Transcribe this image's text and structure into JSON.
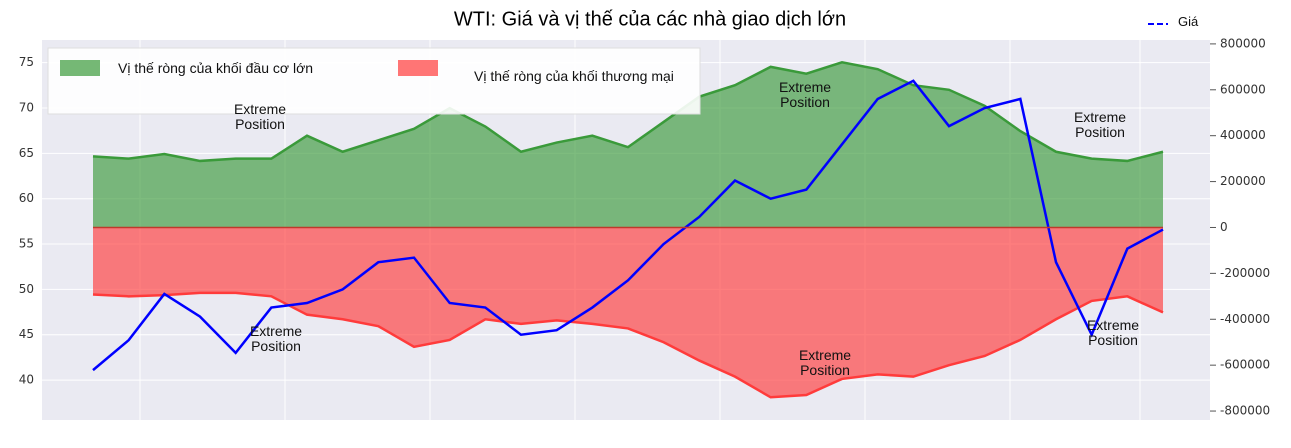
{
  "chart_data": {
    "type": "line",
    "title": "WTI: Giá và vị thế của các nhà giao dịch lớn",
    "ylim": [
      35.6,
      77.5
    ],
    "yticks": [
      40,
      45,
      50,
      55,
      60,
      65,
      70,
      75
    ],
    "y2lim": [
      -839000,
      817000
    ],
    "y2ticks": [
      {
        "value": -800000,
        "label": "-800000"
      },
      {
        "value": -600000,
        "label": "-600000"
      },
      {
        "value": -400000,
        "label": "-400000"
      },
      {
        "value": -200000,
        "label": "-200000"
      },
      0,
      200000,
      400000,
      600000,
      800000
    ],
    "grid": true,
    "series": [
      {
        "name": "Giá",
        "color": "#0000ff",
        "type": "line",
        "values": [
          41.1,
          44.4,
          49.5,
          47.0,
          43.0,
          48.0,
          48.5,
          50.0,
          53.0,
          53.5,
          48.5,
          48.0,
          45.0,
          45.5,
          48.0,
          51.0,
          55.0,
          58.0,
          62.0,
          60.0,
          61.0,
          66.0,
          71.0,
          73.0,
          68.0,
          70.0,
          71.0,
          53.0,
          45.0,
          54.5,
          56.6
        ]
      },
      {
        "name": "Vị thế ròng của khối đầu cơ lớn",
        "color": "#3a9a3a",
        "type": "area",
        "axis": "y2",
        "values": [
          310000,
          300000,
          320000,
          290000,
          300000,
          300000,
          400000,
          330000,
          380000,
          430000,
          520000,
          440000,
          330000,
          370000,
          400000,
          350000,
          460000,
          570000,
          620000,
          700000,
          670000,
          720000,
          690000,
          620000,
          600000,
          530000,
          420000,
          330000,
          300000,
          290000,
          330000
        ]
      },
      {
        "name": "Vị thế  ròng của khối thương mại",
        "color": "#ff3b3b",
        "type": "area",
        "axis": "y2",
        "values": [
          -292000,
          -300000,
          -295000,
          -285000,
          -285000,
          -300000,
          -380000,
          -400000,
          -430000,
          -520000,
          -490000,
          -400000,
          -420000,
          -405000,
          -420000,
          -440000,
          -500000,
          -580000,
          -650000,
          -740000,
          -730000,
          -660000,
          -640000,
          -650000,
          -600000,
          -560000,
          -490000,
          -400000,
          -320000,
          -300000,
          -370000
        ]
      }
    ],
    "annotations": [
      "Extreme Position",
      "Extreme Position",
      "Extreme Position",
      "Extreme Position",
      "Extreme Position",
      "Extreme Position"
    ]
  }
}
